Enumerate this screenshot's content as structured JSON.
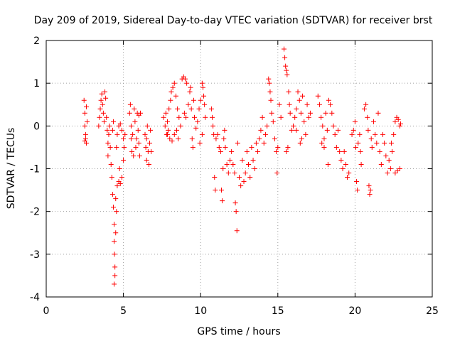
{
  "chart_data": {
    "type": "scatter",
    "title": "Day 209 of 2019, Sidereal Day-to-day VTEC variation (SDTVAR) for receiver brst",
    "xlabel": "GPS time / hours",
    "ylabel": "SDTVAR / TECUs",
    "xlim": [
      0,
      25
    ],
    "ylim": [
      -4,
      2
    ],
    "xticks": [
      0,
      5,
      10,
      15,
      20,
      25
    ],
    "xtick_labels": [
      "0",
      "5",
      "10",
      "15",
      "20",
      "25"
    ],
    "yticks": [
      -4,
      -3,
      -2,
      -1,
      0,
      1,
      2
    ],
    "ytick_labels": [
      "-4",
      "-3",
      "-2",
      "-1",
      "0",
      "1",
      "2"
    ],
    "grid": true,
    "marker": "+",
    "color": "#ff0000",
    "series": [
      {
        "name": "SDTVAR",
        "points": [
          [
            2.45,
            0.6
          ],
          [
            2.5,
            0.3
          ],
          [
            2.5,
            0.0
          ],
          [
            2.55,
            -0.2
          ],
          [
            2.5,
            -0.35
          ],
          [
            2.6,
            -0.4
          ],
          [
            2.65,
            0.1
          ],
          [
            2.6,
            0.45
          ],
          [
            2.55,
            -0.3
          ],
          [
            3.4,
            0.0
          ],
          [
            3.45,
            0.2
          ],
          [
            3.5,
            0.4
          ],
          [
            3.55,
            0.6
          ],
          [
            3.6,
            0.75
          ],
          [
            3.65,
            0.5
          ],
          [
            3.7,
            0.3
          ],
          [
            3.75,
            0.1
          ],
          [
            3.8,
            0.8
          ],
          [
            3.85,
            0.65
          ],
          [
            3.9,
            0.2
          ],
          [
            3.95,
            -0.1
          ],
          [
            4.0,
            -0.4
          ],
          [
            4.0,
            -0.7
          ],
          [
            4.05,
            -0.2
          ],
          [
            4.1,
            0.0
          ],
          [
            4.15,
            -0.5
          ],
          [
            4.2,
            -0.9
          ],
          [
            4.25,
            -1.2
          ],
          [
            4.3,
            -1.6
          ],
          [
            4.35,
            -1.9
          ],
          [
            4.4,
            -2.3
          ],
          [
            4.4,
            -2.7
          ],
          [
            4.42,
            -3.0
          ],
          [
            4.45,
            -3.3
          ],
          [
            4.45,
            -3.5
          ],
          [
            4.4,
            -3.7
          ],
          [
            4.5,
            -2.5
          ],
          [
            4.55,
            -2.0
          ],
          [
            4.5,
            -1.7
          ],
          [
            4.6,
            -1.4
          ],
          [
            4.7,
            -1.3
          ],
          [
            4.75,
            -1.0
          ],
          [
            4.8,
            -1.35
          ],
          [
            4.9,
            -1.2
          ],
          [
            5.0,
            -0.8
          ],
          [
            5.05,
            -0.5
          ],
          [
            4.6,
            -0.2
          ],
          [
            4.7,
            0.0
          ],
          [
            4.8,
            0.05
          ],
          [
            4.9,
            -0.1
          ],
          [
            5.0,
            -0.3
          ],
          [
            5.1,
            -0.2
          ],
          [
            4.55,
            -0.5
          ],
          [
            4.3,
            -0.1
          ],
          [
            4.35,
            0.1
          ],
          [
            5.4,
            0.3
          ],
          [
            5.45,
            0.5
          ],
          [
            5.5,
            0.0
          ],
          [
            5.5,
            -0.3
          ],
          [
            5.55,
            -0.6
          ],
          [
            5.6,
            -0.2
          ],
          [
            5.7,
            0.4
          ],
          [
            5.75,
            0.1
          ],
          [
            5.8,
            -0.5
          ],
          [
            5.9,
            0.3
          ],
          [
            6.0,
            0.25
          ],
          [
            6.1,
            0.3
          ],
          [
            5.95,
            -0.1
          ],
          [
            6.0,
            -0.4
          ],
          [
            6.05,
            -0.7
          ],
          [
            5.85,
            -0.3
          ],
          [
            5.65,
            -0.7
          ],
          [
            6.4,
            -0.2
          ],
          [
            6.45,
            -0.5
          ],
          [
            6.5,
            -0.3
          ],
          [
            6.55,
            0.0
          ],
          [
            6.6,
            -0.6
          ],
          [
            6.65,
            -0.9
          ],
          [
            6.7,
            -0.4
          ],
          [
            6.75,
            -0.1
          ],
          [
            6.8,
            -0.6
          ],
          [
            6.5,
            -0.8
          ],
          [
            7.6,
            0.2
          ],
          [
            7.7,
            0.0
          ],
          [
            7.75,
            0.3
          ],
          [
            7.8,
            -0.2
          ],
          [
            7.85,
            0.1
          ],
          [
            7.9,
            -0.1
          ],
          [
            7.95,
            0.4
          ],
          [
            8.0,
            -0.3
          ],
          [
            8.05,
            0.6
          ],
          [
            8.1,
            0.8
          ],
          [
            8.2,
            0.9
          ],
          [
            8.3,
            1.0
          ],
          [
            8.4,
            0.7
          ],
          [
            8.5,
            0.4
          ],
          [
            8.6,
            0.2
          ],
          [
            8.7,
            0.0
          ],
          [
            8.8,
            1.1
          ],
          [
            8.9,
            1.15
          ],
          [
            9.0,
            1.1
          ],
          [
            9.1,
            1.0
          ],
          [
            9.2,
            0.5
          ],
          [
            8.3,
            -0.2
          ],
          [
            8.45,
            -0.1
          ],
          [
            8.55,
            -0.3
          ],
          [
            8.95,
            0.3
          ],
          [
            9.05,
            0.2
          ],
          [
            8.15,
            -0.35
          ],
          [
            7.85,
            -0.2
          ],
          [
            9.3,
            0.8
          ],
          [
            9.35,
            0.9
          ],
          [
            9.4,
            0.4
          ],
          [
            9.45,
            -0.3
          ],
          [
            9.5,
            -0.5
          ],
          [
            9.55,
            0.6
          ],
          [
            9.6,
            0.2
          ],
          [
            9.7,
            -0.05
          ],
          [
            9.8,
            0.1
          ],
          [
            9.9,
            0.4
          ],
          [
            10.0,
            0.6
          ],
          [
            10.1,
            1.0
          ],
          [
            10.15,
            0.9
          ],
          [
            10.2,
            0.7
          ],
          [
            10.25,
            0.5
          ],
          [
            10.3,
            0.2
          ],
          [
            10.1,
            -0.2
          ],
          [
            9.95,
            -0.4
          ],
          [
            10.7,
            0.4
          ],
          [
            10.75,
            0.2
          ],
          [
            10.8,
            0.0
          ],
          [
            10.85,
            -0.2
          ],
          [
            10.9,
            -1.2
          ],
          [
            10.95,
            -1.5
          ],
          [
            11.0,
            -0.3
          ],
          [
            11.1,
            -0.2
          ],
          [
            11.2,
            -0.5
          ],
          [
            11.3,
            -0.6
          ],
          [
            11.35,
            -1.5
          ],
          [
            11.4,
            -1.75
          ],
          [
            11.45,
            -1.0
          ],
          [
            11.5,
            -0.3
          ],
          [
            11.55,
            -0.1
          ],
          [
            11.6,
            -0.5
          ],
          [
            11.7,
            -0.9
          ],
          [
            11.8,
            -1.1
          ],
          [
            11.9,
            -0.8
          ],
          [
            12.0,
            -0.6
          ],
          [
            12.1,
            -0.9
          ],
          [
            12.2,
            -1.1
          ],
          [
            12.25,
            -1.8
          ],
          [
            12.3,
            -2.0
          ],
          [
            12.35,
            -2.45
          ],
          [
            12.4,
            -0.4
          ],
          [
            12.5,
            -1.2
          ],
          [
            12.6,
            -1.4
          ],
          [
            12.7,
            -0.8
          ],
          [
            12.8,
            -1.3
          ],
          [
            12.9,
            -1.1
          ],
          [
            13.0,
            -0.6
          ],
          [
            13.1,
            -0.9
          ],
          [
            13.2,
            -1.2
          ],
          [
            13.3,
            -0.5
          ],
          [
            13.4,
            -0.8
          ],
          [
            13.5,
            -1.0
          ],
          [
            13.6,
            -0.4
          ],
          [
            13.7,
            -0.6
          ],
          [
            13.8,
            -0.3
          ],
          [
            13.9,
            -0.1
          ],
          [
            14.0,
            0.2
          ],
          [
            14.1,
            -0.4
          ],
          [
            14.2,
            -0.2
          ],
          [
            14.3,
            0.0
          ],
          [
            14.4,
            1.1
          ],
          [
            14.45,
            1.0
          ],
          [
            14.5,
            0.8
          ],
          [
            14.55,
            0.6
          ],
          [
            14.6,
            0.3
          ],
          [
            14.7,
            0.1
          ],
          [
            14.8,
            -0.3
          ],
          [
            14.9,
            -0.6
          ],
          [
            14.95,
            -1.1
          ],
          [
            15.0,
            -0.5
          ],
          [
            15.1,
            0.5
          ],
          [
            15.2,
            0.2
          ],
          [
            15.4,
            1.8
          ],
          [
            15.45,
            1.6
          ],
          [
            15.5,
            1.4
          ],
          [
            15.55,
            1.3
          ],
          [
            15.6,
            1.2
          ],
          [
            15.7,
            0.8
          ],
          [
            15.75,
            0.5
          ],
          [
            15.8,
            0.3
          ],
          [
            15.9,
            -0.1
          ],
          [
            16.0,
            0.0
          ],
          [
            15.65,
            -0.5
          ],
          [
            15.55,
            -0.6
          ],
          [
            16.1,
            0.2
          ],
          [
            16.2,
            0.4
          ],
          [
            16.3,
            0.8
          ],
          [
            16.4,
            0.6
          ],
          [
            16.5,
            0.3
          ],
          [
            16.6,
            0.7
          ],
          [
            16.7,
            0.1
          ],
          [
            16.8,
            -0.2
          ],
          [
            16.9,
            0.5
          ],
          [
            17.0,
            0.2
          ],
          [
            17.1,
            0.3
          ],
          [
            16.45,
            -0.4
          ],
          [
            16.55,
            -0.3
          ],
          [
            16.2,
            -0.1
          ],
          [
            17.6,
            0.7
          ],
          [
            17.7,
            0.5
          ],
          [
            17.8,
            0.2
          ],
          [
            17.9,
            0.0
          ],
          [
            18.0,
            -0.3
          ],
          [
            18.1,
            0.3
          ],
          [
            18.2,
            -0.1
          ],
          [
            18.3,
            0.6
          ],
          [
            18.4,
            0.5
          ],
          [
            18.5,
            0.3
          ],
          [
            18.6,
            0.0
          ],
          [
            18.7,
            -0.2
          ],
          [
            18.8,
            -0.5
          ],
          [
            18.9,
            -0.1
          ],
          [
            19.0,
            -0.6
          ],
          [
            19.1,
            -0.8
          ],
          [
            19.2,
            -1.0
          ],
          [
            19.3,
            -0.6
          ],
          [
            19.4,
            -0.9
          ],
          [
            18.25,
            -0.9
          ],
          [
            18.0,
            -0.5
          ],
          [
            17.85,
            -0.4
          ],
          [
            19.5,
            -1.2
          ],
          [
            19.6,
            -1.1
          ],
          [
            19.8,
            -0.2
          ],
          [
            19.9,
            -0.1
          ],
          [
            20.0,
            0.1
          ],
          [
            20.05,
            -0.5
          ],
          [
            20.1,
            -1.3
          ],
          [
            20.15,
            -1.5
          ],
          [
            20.2,
            -0.4
          ],
          [
            20.3,
            -0.2
          ],
          [
            20.35,
            -0.6
          ],
          [
            20.4,
            -0.9
          ],
          [
            20.6,
            0.4
          ],
          [
            20.7,
            0.5
          ],
          [
            20.8,
            0.2
          ],
          [
            20.85,
            -0.1
          ],
          [
            20.9,
            -1.4
          ],
          [
            20.95,
            -1.6
          ],
          [
            21.0,
            -1.5
          ],
          [
            21.05,
            -0.3
          ],
          [
            21.1,
            -0.5
          ],
          [
            21.2,
            0.1
          ],
          [
            21.3,
            -0.2
          ],
          [
            21.4,
            -0.4
          ],
          [
            21.5,
            0.3
          ],
          [
            21.6,
            -0.6
          ],
          [
            21.7,
            -0.9
          ],
          [
            21.8,
            -0.2
          ],
          [
            21.9,
            -0.4
          ],
          [
            22.0,
            -0.7
          ],
          [
            22.1,
            -1.1
          ],
          [
            22.2,
            -0.8
          ],
          [
            22.3,
            -1.0
          ],
          [
            22.4,
            -0.6
          ],
          [
            22.5,
            -0.2
          ],
          [
            22.6,
            0.1
          ],
          [
            22.7,
            0.2
          ],
          [
            22.8,
            0.15
          ],
          [
            22.9,
            0.0
          ],
          [
            22.95,
            0.05
          ],
          [
            22.6,
            -1.1
          ],
          [
            22.75,
            -1.05
          ],
          [
            22.9,
            -1.0
          ],
          [
            22.35,
            -0.4
          ]
        ]
      }
    ]
  }
}
